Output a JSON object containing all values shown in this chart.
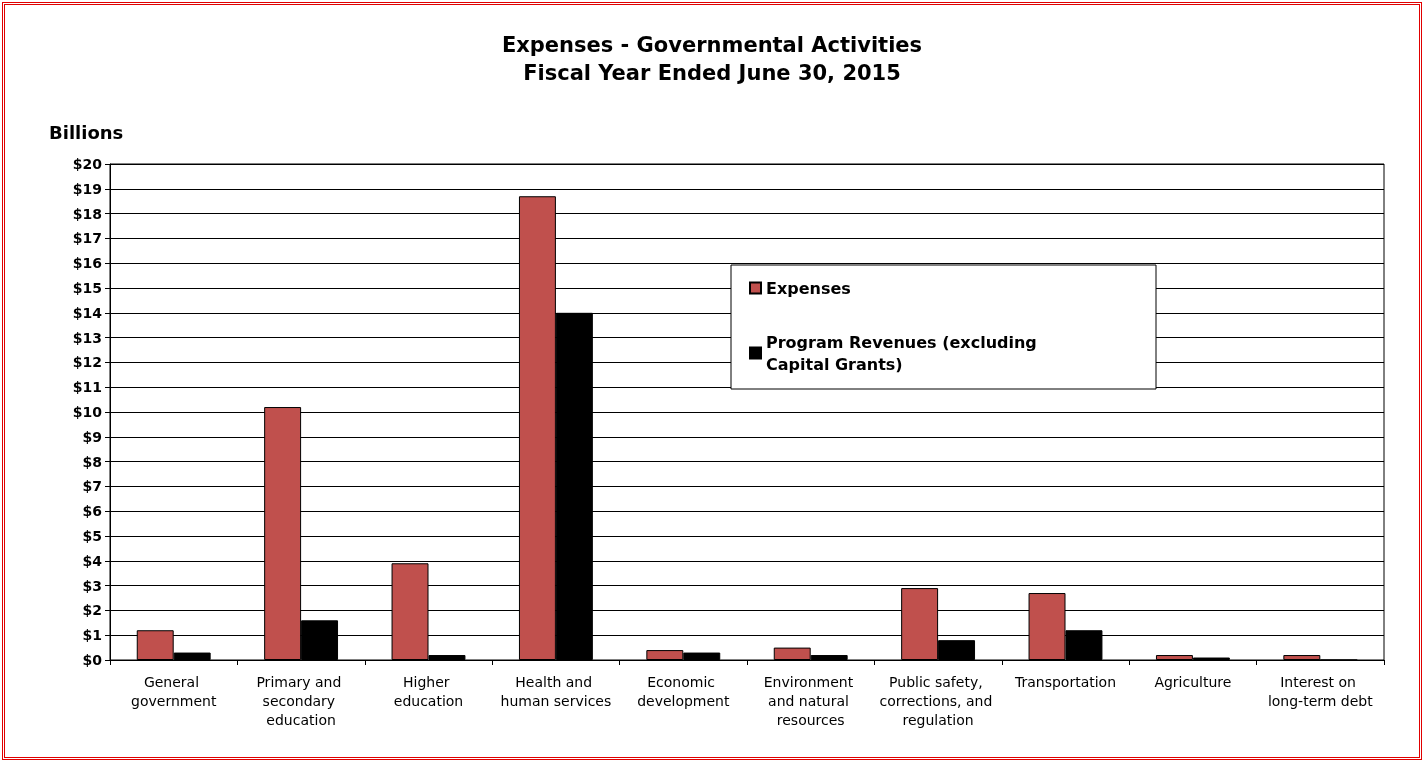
{
  "chart_data": {
    "type": "bar",
    "title": "Expenses - Governmental Activities\nFiscal Year Ended June 30, 2015",
    "ylabel": "Billions",
    "categories": [
      "General government",
      "Primary and secondary education",
      "Higher education",
      "Health and human services",
      "Economic development",
      "Environment and natural resources",
      "Public safety, corrections, and regulation",
      "Transportation",
      "Agriculture",
      "Interest on long-term debt"
    ],
    "series": [
      {
        "name": "Expenses",
        "color": "#c0504d",
        "values": [
          1.2,
          10.2,
          3.9,
          18.7,
          0.4,
          0.5,
          2.9,
          2.7,
          0.2,
          0.2
        ]
      },
      {
        "name": "Program Revenues (excluding Capital Grants)",
        "color": "#000000",
        "values": [
          0.3,
          1.6,
          0.2,
          14.0,
          0.3,
          0.2,
          0.8,
          1.2,
          0.1,
          0
        ]
      }
    ],
    "ylim": [
      0,
      20
    ],
    "yticks": [
      {
        "value": 0,
        "label": "$0"
      },
      {
        "value": 1,
        "label": "$1"
      },
      {
        "value": 2,
        "label": "$2"
      },
      {
        "value": 3,
        "label": "$3"
      },
      {
        "value": 4,
        "label": "$4"
      },
      {
        "value": 5,
        "label": "$5"
      },
      {
        "value": 6,
        "label": "$6"
      },
      {
        "value": 7,
        "label": "$7"
      },
      {
        "value": 8,
        "label": "$8"
      },
      {
        "value": 9,
        "label": "$9"
      },
      {
        "value": 10,
        "label": "$10"
      },
      {
        "value": 11,
        "label": "$11"
      },
      {
        "value": 12,
        "label": "$12"
      },
      {
        "value": 13,
        "label": "$13"
      },
      {
        "value": 14,
        "label": "$14"
      },
      {
        "value": 15,
        "label": "$15"
      },
      {
        "value": 16,
        "label": "$16"
      },
      {
        "value": 17,
        "label": "$17"
      },
      {
        "value": 18,
        "label": "$18"
      },
      {
        "value": 19,
        "label": "$19"
      },
      {
        "value": 20,
        "label": "$20"
      }
    ],
    "grid": "y",
    "legend": "top right"
  }
}
